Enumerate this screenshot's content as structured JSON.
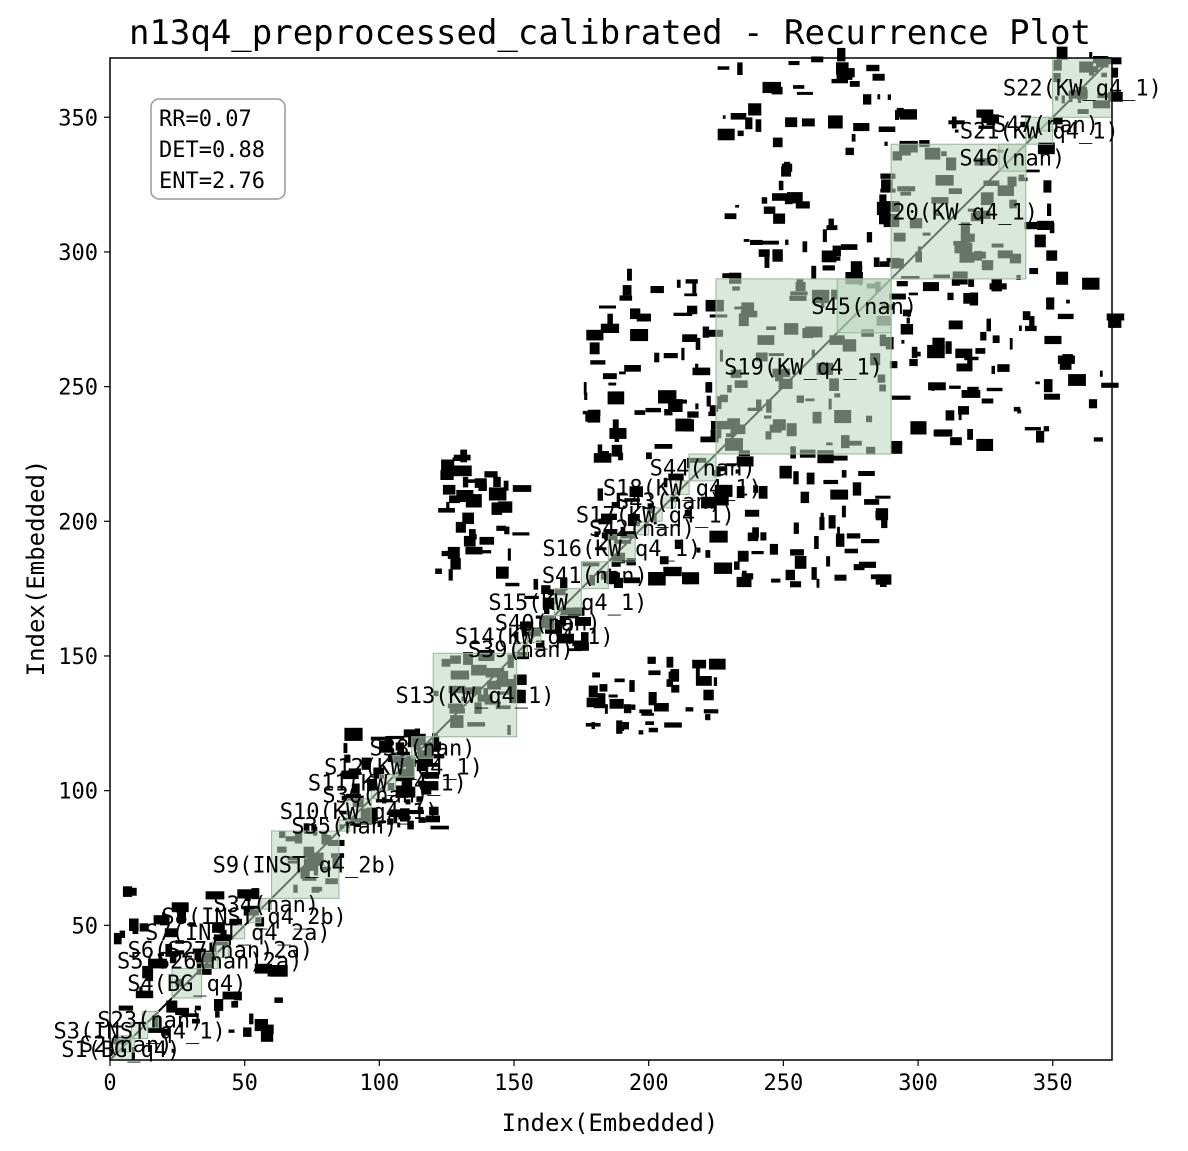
{
  "chart_data": {
    "type": "heatmap",
    "title": "n13q4_preprocessed_calibrated - Recurrence Plot",
    "xlabel": "Index(Embedded)",
    "ylabel": "Index(Embedded)",
    "xlim": [
      0,
      372
    ],
    "ylim": [
      0,
      372
    ],
    "x_ticks": [
      0,
      50,
      100,
      150,
      200,
      250,
      300,
      350
    ],
    "y_ticks": [
      50,
      100,
      150,
      200,
      250,
      300,
      350
    ],
    "grid": false,
    "stats": [
      "RR=0.07",
      "DET=0.88",
      "ENT=2.76"
    ],
    "stats_placement": "top-left",
    "colors": {
      "recurrence": "#000000",
      "segment_fill": "#b9d6bd",
      "segment_stroke": "#8fb893",
      "box_edge": "#999999"
    },
    "segments": [
      {
        "label": "S1(BG_q4)",
        "start": 0,
        "end": 8
      },
      {
        "label": "S2(nan)",
        "start": 3,
        "end": 9
      },
      {
        "label": "S3(INST_q4_1)",
        "start": 8,
        "end": 14
      },
      {
        "label": "S23(nan)",
        "start": 12,
        "end": 18
      },
      {
        "label": "S4(BG_q4)",
        "start": 23,
        "end": 34
      },
      {
        "label": "S5(S26(nan)2a)",
        "start": 34,
        "end": 40
      },
      {
        "label": "S6(S27(nan)2a)",
        "start": 38,
        "end": 44
      },
      {
        "label": "S7(INST_q4_2a)",
        "start": 45,
        "end": 50
      },
      {
        "label": "S8(INST_q4_2b)",
        "start": 51,
        "end": 56
      },
      {
        "label": "S34(nan)",
        "start": 56,
        "end": 60
      },
      {
        "label": "S9(INST_q4_2b)",
        "start": 60,
        "end": 85
      },
      {
        "label": "S35(nan)",
        "start": 85,
        "end": 89
      },
      {
        "label": "S10(KW_q4_1)",
        "start": 88,
        "end": 97
      },
      {
        "label": "S36(nan)",
        "start": 97,
        "end": 100
      },
      {
        "label": "S11(KW_q4_1)",
        "start": 100,
        "end": 106
      },
      {
        "label": "S12(KW_q4_1)",
        "start": 105,
        "end": 113
      },
      {
        "label": "S38(nan)",
        "start": 112,
        "end": 120
      },
      {
        "label": "S13(KW_q4_1)",
        "start": 120,
        "end": 151
      },
      {
        "label": "S39(nan)",
        "start": 150,
        "end": 155
      },
      {
        "label": "S14(KW_q4_1)",
        "start": 155,
        "end": 160
      },
      {
        "label": "S40(nan)",
        "start": 160,
        "end": 165
      },
      {
        "label": "S15(KW_q4_1)",
        "start": 165,
        "end": 175
      },
      {
        "label": "S41(nan)",
        "start": 175,
        "end": 185
      },
      {
        "label": "S16(KW_q4_1)",
        "start": 185,
        "end": 195
      },
      {
        "label": "S42(nan)",
        "start": 195,
        "end": 200
      },
      {
        "label": "S17(KW_q4_1)",
        "start": 200,
        "end": 205
      },
      {
        "label": "S43(nan)",
        "start": 205,
        "end": 210
      },
      {
        "label": "S18(KW_q4_1)",
        "start": 210,
        "end": 215
      },
      {
        "label": "S44(nan)",
        "start": 215,
        "end": 225
      },
      {
        "label": "S19(KW_q4_1)",
        "start": 225,
        "end": 290
      },
      {
        "label": "S45(nan)",
        "start": 270,
        "end": 290
      },
      {
        "label": "S20(KW_q4_1)",
        "start": 290,
        "end": 340
      },
      {
        "label": "S46(nan)",
        "start": 330,
        "end": 340
      },
      {
        "label": "S21(KW_q4_1)",
        "start": 340,
        "end": 350
      },
      {
        "label": "S47(nan)",
        "start": 345,
        "end": 350
      },
      {
        "label": "S22(KW_q4_1)",
        "start": 350,
        "end": 372
      }
    ],
    "recurrence_blocks": [
      {
        "x": [
          0,
          62
        ],
        "y": [
          0,
          62
        ]
      },
      {
        "x": [
          62,
          85
        ],
        "y": [
          62,
          85
        ]
      },
      {
        "x": [
          85,
          100
        ],
        "y": [
          85,
          100
        ]
      },
      {
        "x": [
          100,
          120
        ],
        "y": [
          100,
          120
        ]
      },
      {
        "x": [
          120,
          150
        ],
        "y": [
          120,
          150
        ]
      },
      {
        "x": [
          150,
          175
        ],
        "y": [
          150,
          175
        ]
      },
      {
        "x": [
          175,
          225
        ],
        "y": [
          175,
          225
        ]
      },
      {
        "x": [
          225,
          290
        ],
        "y": [
          225,
          290
        ]
      },
      {
        "x": [
          290,
          350
        ],
        "y": [
          290,
          350
        ]
      },
      {
        "x": [
          350,
          372
        ],
        "y": [
          350,
          372
        ]
      },
      {
        "x": [
          225,
          290
        ],
        "y": [
          290,
          372
        ]
      },
      {
        "x": [
          290,
          372
        ],
        "y": [
          225,
          290
        ]
      },
      {
        "x": [
          175,
          225
        ],
        "y": [
          225,
          290
        ]
      },
      {
        "x": [
          225,
          290
        ],
        "y": [
          175,
          225
        ]
      },
      {
        "x": [
          120,
          150
        ],
        "y": [
          175,
          225
        ]
      },
      {
        "x": [
          175,
          225
        ],
        "y": [
          120,
          150
        ]
      },
      {
        "x": [
          85,
          120
        ],
        "y": [
          100,
          120
        ]
      },
      {
        "x": [
          100,
          120
        ],
        "y": [
          85,
          100
        ]
      }
    ]
  }
}
